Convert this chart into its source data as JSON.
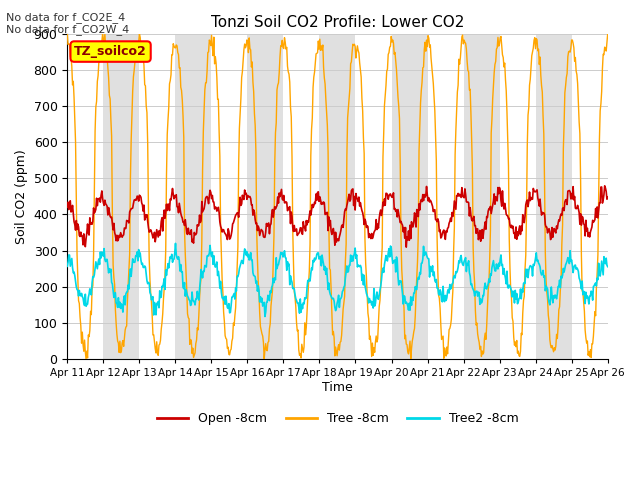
{
  "title": "Tonzi Soil CO2 Profile: Lower CO2",
  "xlabel": "Time",
  "ylabel": "Soil CO2 (ppm)",
  "ylim": [
    0,
    900
  ],
  "annotations": [
    "No data for f_CO2E_4",
    "No data for f_CO2W_4"
  ],
  "legend_label": "TZ_soilco2",
  "series_labels": [
    "Open -8cm",
    "Tree -8cm",
    "Tree2 -8cm"
  ],
  "series_colors": [
    "#cc0000",
    "#ffa500",
    "#00d8e8"
  ],
  "band_color": "#e0e0e0",
  "tick_labels": [
    "Apr 11",
    "Apr 12",
    "Apr 13",
    "Apr 14",
    "Apr 15",
    "Apr 16",
    "Apr 17",
    "Apr 18",
    "Apr 19",
    "Apr 20",
    "Apr 21",
    "Apr 22",
    "Apr 23",
    "Apr 24",
    "Apr 25",
    "Apr 26"
  ],
  "n_days": 15,
  "points_per_day": 48
}
